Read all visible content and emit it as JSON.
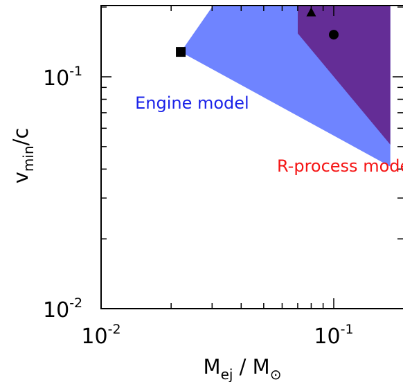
{
  "chart_data": {
    "type": "scatter",
    "title": "",
    "xlabel": {
      "main": "M",
      "sub": "ej",
      "sep": " / M",
      "sun_symbol": "⊙"
    },
    "ylabel": {
      "main": "v",
      "sub": "min",
      "suffix": "/c"
    },
    "xscale": "log",
    "yscale": "log",
    "xlim": [
      0.01,
      0.175
    ],
    "ylim": [
      0.01,
      0.21
    ],
    "x_ticks": [
      {
        "value": 0.01,
        "base": "10",
        "exp": "-2"
      },
      {
        "value": 0.1,
        "base": "10",
        "exp": "-1"
      }
    ],
    "y_ticks": [
      {
        "value": 0.01,
        "base": "10",
        "exp": "-2"
      },
      {
        "value": 0.1,
        "base": "10",
        "exp": "-1"
      }
    ],
    "grid": false,
    "regions": [
      {
        "name": "Engine model",
        "color": "#6f84ff",
        "polygon": [
          [
            0.022,
            0.128
          ],
          [
            0.031,
            0.21
          ],
          [
            0.175,
            0.21
          ],
          [
            0.175,
            0.041
          ]
        ]
      },
      {
        "name": "R-process model",
        "color": "#642d96",
        "polygon": [
          [
            0.07,
            0.21
          ],
          [
            0.175,
            0.21
          ],
          [
            0.175,
            0.051
          ],
          [
            0.07,
            0.154
          ]
        ]
      }
    ],
    "points": [
      {
        "marker": "square",
        "x": 0.022,
        "y": 0.128
      },
      {
        "marker": "triangle",
        "x": 0.08,
        "y": 0.19
      },
      {
        "marker": "circle",
        "x": 0.1,
        "y": 0.152
      }
    ],
    "annotations": [
      {
        "text": "Engine model",
        "color": "#1a22e8",
        "x": 0.014,
        "y": 0.073
      },
      {
        "text": "R-process model",
        "color": "#f51414",
        "x": 0.057,
        "y": 0.039
      }
    ]
  }
}
